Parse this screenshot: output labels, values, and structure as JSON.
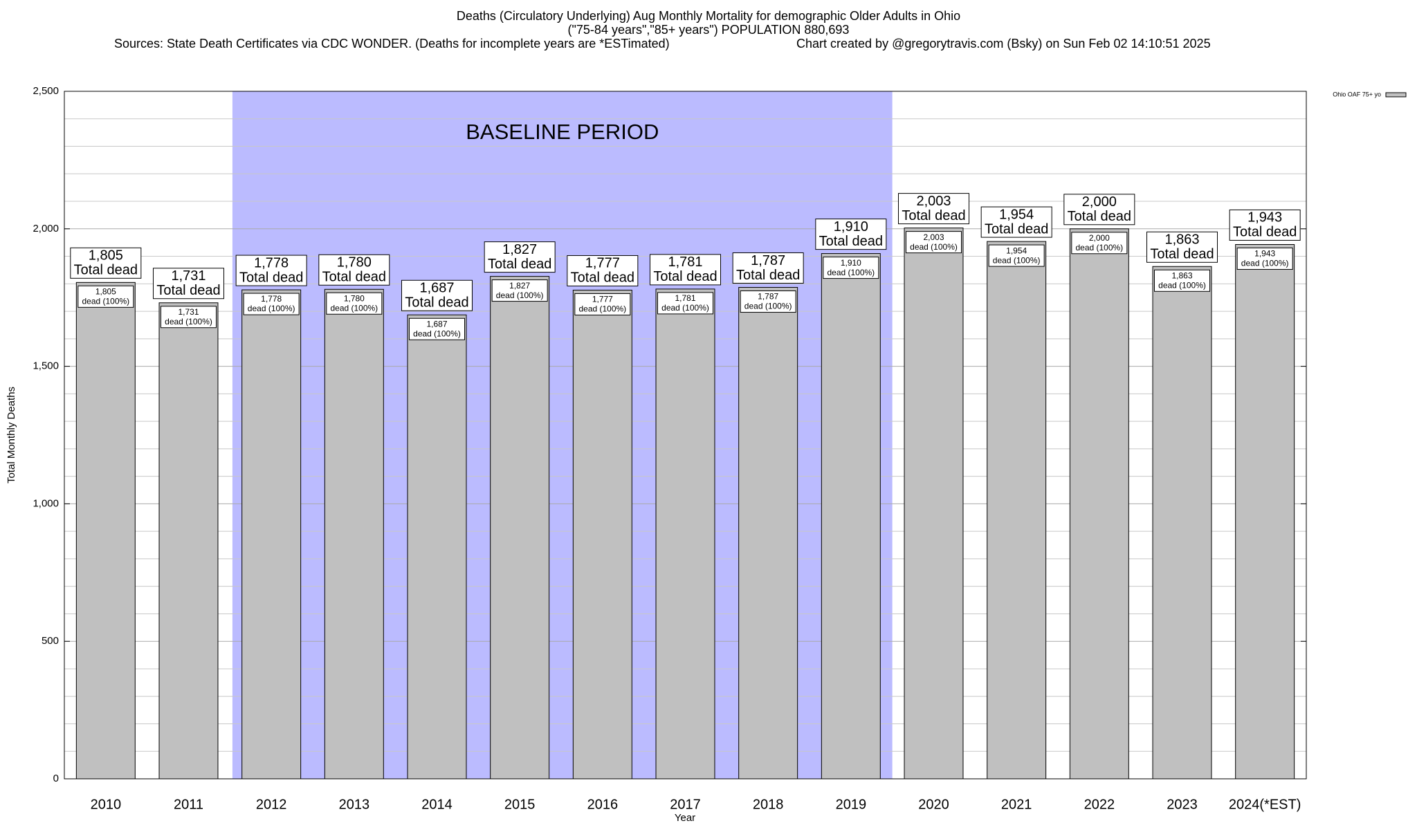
{
  "chart_data": {
    "type": "bar",
    "title": "Deaths (Circulatory Underlying) Aug Monthly Mortality for demographic Older Adults in Ohio",
    "subtitle": "(\"75-84 years\",\"85+ years\") POPULATION 880,693",
    "source": "Sources: State Death Certificates via CDC WONDER. (Deaths for incomplete years are *ESTimated)",
    "credit": "Chart created by @gregorytravis.com (Bsky) on Sun Feb 02 14:10:51 2025",
    "x_label": "Year",
    "y_label": "Total Monthly Deaths",
    "categories": [
      "2010",
      "2011",
      "2012",
      "2013",
      "2014",
      "2015",
      "2016",
      "2017",
      "2018",
      "2019",
      "2020",
      "2021",
      "2022",
      "2023",
      "2024(*EST)"
    ],
    "series": [
      {
        "name": "Ohio OAF 75+ yo",
        "color": "#c0c0c0",
        "values": [
          1805,
          1731,
          1778,
          1780,
          1687,
          1827,
          1777,
          1781,
          1787,
          1910,
          2003,
          1954,
          2000,
          1863,
          1943
        ],
        "value_labels": [
          "1,805",
          "1,731",
          "1,778",
          "1,780",
          "1,687",
          "1,827",
          "1,777",
          "1,781",
          "1,787",
          "1,910",
          "2,003",
          "1,954",
          "2,000",
          "1,863",
          "1,943"
        ]
      }
    ],
    "total_label": "Total dead",
    "share_label": "dead (100%)",
    "baseline": {
      "label": "BASELINE PERIOD",
      "start": "2012",
      "end": "2019",
      "color": "#bbbbff"
    },
    "ylim": [
      0,
      2500
    ],
    "yticks": [
      0,
      500,
      {
        "value": 1000,
        "label": "1,000"
      },
      {
        "value": 1500,
        "label": "1,500"
      },
      {
        "value": 2000,
        "label": "2,000"
      },
      {
        "value": 2500,
        "label": "2,500"
      }
    ],
    "minor_yticks": [
      100,
      200,
      300,
      400,
      600,
      700,
      800,
      900,
      1100,
      1200,
      1300,
      1400,
      1600,
      1700,
      1800,
      1900,
      2100,
      2200,
      2300,
      2400
    ],
    "grid": true,
    "legend": "top-right"
  }
}
